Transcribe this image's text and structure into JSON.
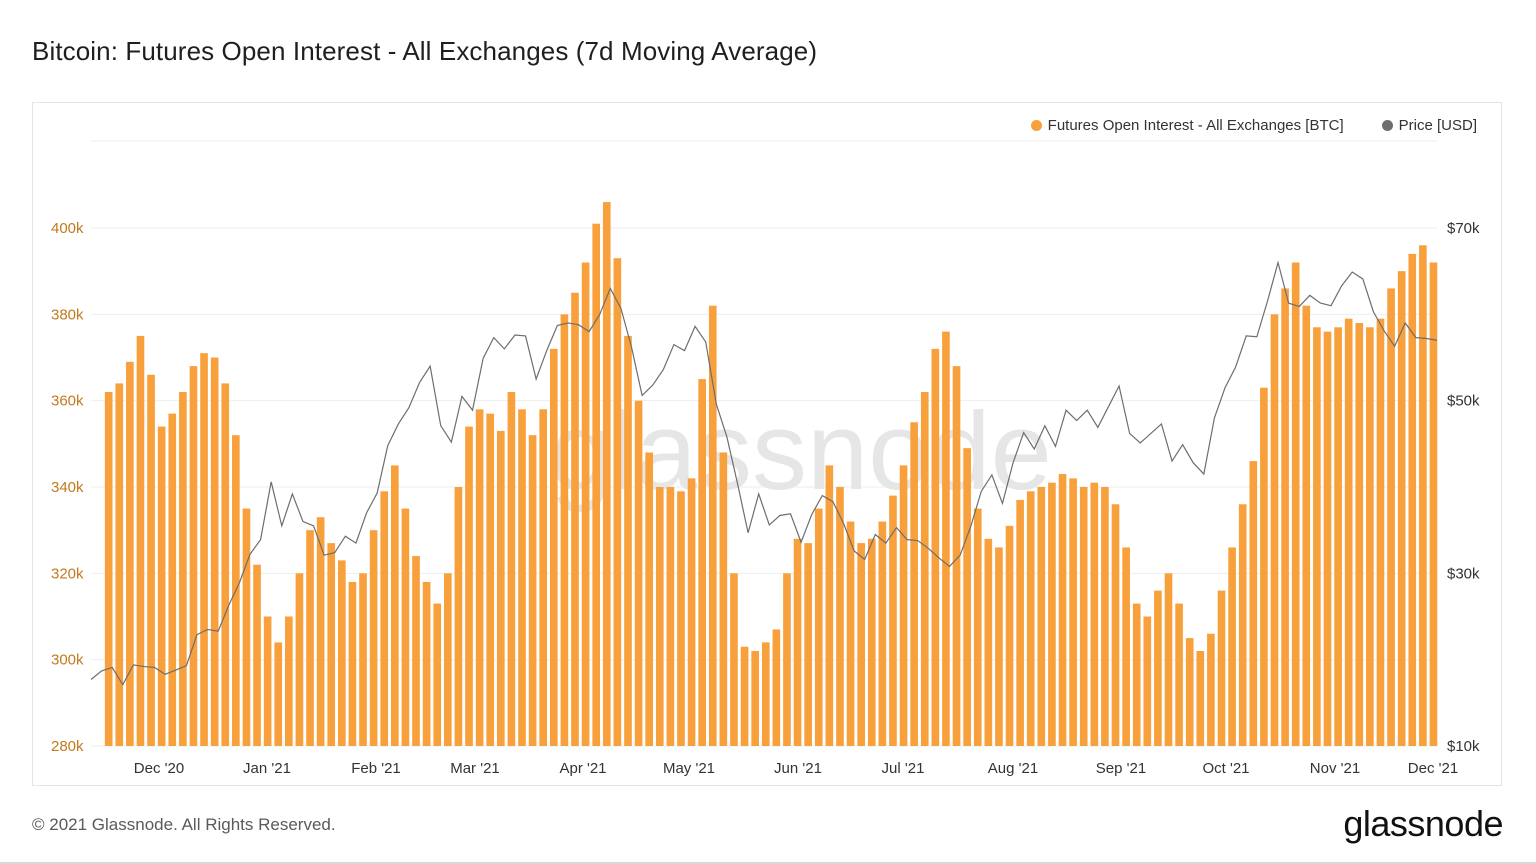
{
  "title": "Bitcoin: Futures Open Interest - All Exchanges (7d Moving Average)",
  "footer": {
    "copyright": "© 2021 Glassnode. All Rights Reserved.",
    "brand": "glassnode"
  },
  "watermark": "glassnode",
  "colors": {
    "oi": "#f7a03c",
    "price": "#6e6e6e",
    "oi_axis": "#c27a1e",
    "price_axis": "#333333",
    "grid": "#eeeeee"
  },
  "chart_data": {
    "type": "bar",
    "title": "Bitcoin: Futures Open Interest - All Exchanges (7d Moving Average)",
    "legend_position": "top-right",
    "grid": true,
    "x_range": [
      "2020-11-18",
      "2021-12-04"
    ],
    "x_ticks": [
      "Dec '20",
      "Jan '21",
      "Feb '21",
      "Mar '21",
      "Apr '21",
      "May '21",
      "Jun '21",
      "Jul '21",
      "Aug '21",
      "Sep '21",
      "Oct '21",
      "Nov '21",
      "Dec '21"
    ],
    "y_left": {
      "ticks": [
        "280k",
        "300k",
        "320k",
        "340k",
        "360k",
        "380k",
        "400k"
      ],
      "ylim": [
        280000,
        400000
      ]
    },
    "y_right": {
      "ticks": [
        "$10k",
        "$30k",
        "$50k",
        "$70k"
      ],
      "ylim": [
        10000,
        70000
      ]
    },
    "series": [
      {
        "name": "Futures Open Interest - All Exchanges [BTC]",
        "type": "bar",
        "axis": "left",
        "points": [
          [
            "2020-11-23",
            362000
          ],
          [
            "2020-11-26",
            364000
          ],
          [
            "2020-11-29",
            369000
          ],
          [
            "2020-12-02",
            375000
          ],
          [
            "2020-12-05",
            366000
          ],
          [
            "2020-12-08",
            354000
          ],
          [
            "2020-12-11",
            357000
          ],
          [
            "2020-12-14",
            362000
          ],
          [
            "2020-12-17",
            368000
          ],
          [
            "2020-12-20",
            371000
          ],
          [
            "2020-12-23",
            370000
          ],
          [
            "2020-12-26",
            364000
          ],
          [
            "2020-12-29",
            352000
          ],
          [
            "2021-01-01",
            335000
          ],
          [
            "2021-01-04",
            322000
          ],
          [
            "2021-01-07",
            310000
          ],
          [
            "2021-01-10",
            304000
          ],
          [
            "2021-01-13",
            310000
          ],
          [
            "2021-01-16",
            320000
          ],
          [
            "2021-01-19",
            330000
          ],
          [
            "2021-01-22",
            333000
          ],
          [
            "2021-01-25",
            327000
          ],
          [
            "2021-01-28",
            323000
          ],
          [
            "2021-01-31",
            318000
          ],
          [
            "2021-02-03",
            320000
          ],
          [
            "2021-02-06",
            330000
          ],
          [
            "2021-02-09",
            339000
          ],
          [
            "2021-02-12",
            345000
          ],
          [
            "2021-02-15",
            335000
          ],
          [
            "2021-02-18",
            324000
          ],
          [
            "2021-02-21",
            318000
          ],
          [
            "2021-02-24",
            313000
          ],
          [
            "2021-02-27",
            320000
          ],
          [
            "2021-03-02",
            340000
          ],
          [
            "2021-03-05",
            354000
          ],
          [
            "2021-03-08",
            358000
          ],
          [
            "2021-03-11",
            357000
          ],
          [
            "2021-03-14",
            353000
          ],
          [
            "2021-03-17",
            362000
          ],
          [
            "2021-03-20",
            358000
          ],
          [
            "2021-03-23",
            352000
          ],
          [
            "2021-03-26",
            358000
          ],
          [
            "2021-03-29",
            372000
          ],
          [
            "2021-04-01",
            380000
          ],
          [
            "2021-04-04",
            385000
          ],
          [
            "2021-04-07",
            392000
          ],
          [
            "2021-04-10",
            401000
          ],
          [
            "2021-04-13",
            406000
          ],
          [
            "2021-04-16",
            393000
          ],
          [
            "2021-04-19",
            375000
          ],
          [
            "2021-04-22",
            360000
          ],
          [
            "2021-04-25",
            348000
          ],
          [
            "2021-04-28",
            340000
          ],
          [
            "2021-05-01",
            340000
          ],
          [
            "2021-05-04",
            339000
          ],
          [
            "2021-05-07",
            342000
          ],
          [
            "2021-05-10",
            365000
          ],
          [
            "2021-05-13",
            382000
          ],
          [
            "2021-05-16",
            348000
          ],
          [
            "2021-05-19",
            320000
          ],
          [
            "2021-05-22",
            303000
          ],
          [
            "2021-05-25",
            302000
          ],
          [
            "2021-05-28",
            304000
          ],
          [
            "2021-05-31",
            307000
          ],
          [
            "2021-06-03",
            320000
          ],
          [
            "2021-06-06",
            328000
          ],
          [
            "2021-06-09",
            327000
          ],
          [
            "2021-06-12",
            335000
          ],
          [
            "2021-06-15",
            345000
          ],
          [
            "2021-06-18",
            340000
          ],
          [
            "2021-06-21",
            332000
          ],
          [
            "2021-06-24",
            327000
          ],
          [
            "2021-06-27",
            328000
          ],
          [
            "2021-06-30",
            332000
          ],
          [
            "2021-07-03",
            338000
          ],
          [
            "2021-07-06",
            345000
          ],
          [
            "2021-07-09",
            355000
          ],
          [
            "2021-07-12",
            362000
          ],
          [
            "2021-07-15",
            372000
          ],
          [
            "2021-07-18",
            376000
          ],
          [
            "2021-07-21",
            368000
          ],
          [
            "2021-07-24",
            349000
          ],
          [
            "2021-07-27",
            335000
          ],
          [
            "2021-07-30",
            328000
          ],
          [
            "2021-08-02",
            326000
          ],
          [
            "2021-08-05",
            331000
          ],
          [
            "2021-08-08",
            337000
          ],
          [
            "2021-08-11",
            339000
          ],
          [
            "2021-08-14",
            340000
          ],
          [
            "2021-08-17",
            341000
          ],
          [
            "2021-08-20",
            343000
          ],
          [
            "2021-08-23",
            342000
          ],
          [
            "2021-08-26",
            340000
          ],
          [
            "2021-08-29",
            341000
          ],
          [
            "2021-09-01",
            340000
          ],
          [
            "2021-09-04",
            336000
          ],
          [
            "2021-09-07",
            326000
          ],
          [
            "2021-09-10",
            313000
          ],
          [
            "2021-09-13",
            310000
          ],
          [
            "2021-09-16",
            316000
          ],
          [
            "2021-09-19",
            320000
          ],
          [
            "2021-09-22",
            313000
          ],
          [
            "2021-09-25",
            305000
          ],
          [
            "2021-09-28",
            302000
          ],
          [
            "2021-10-01",
            306000
          ],
          [
            "2021-10-04",
            316000
          ],
          [
            "2021-10-07",
            326000
          ],
          [
            "2021-10-10",
            336000
          ],
          [
            "2021-10-13",
            346000
          ],
          [
            "2021-10-16",
            363000
          ],
          [
            "2021-10-19",
            380000
          ],
          [
            "2021-10-22",
            386000
          ],
          [
            "2021-10-25",
            392000
          ],
          [
            "2021-10-28",
            382000
          ],
          [
            "2021-10-31",
            377000
          ],
          [
            "2021-11-03",
            376000
          ],
          [
            "2021-11-06",
            377000
          ],
          [
            "2021-11-09",
            379000
          ],
          [
            "2021-11-12",
            378000
          ],
          [
            "2021-11-15",
            377000
          ],
          [
            "2021-11-18",
            379000
          ],
          [
            "2021-11-21",
            386000
          ],
          [
            "2021-11-24",
            390000
          ],
          [
            "2021-11-27",
            394000
          ],
          [
            "2021-11-30",
            396000
          ],
          [
            "2021-12-03",
            392000
          ]
        ]
      },
      {
        "name": "Price [USD]",
        "type": "line",
        "axis": "right",
        "points": [
          [
            "2020-11-18",
            17700
          ],
          [
            "2020-11-21",
            18700
          ],
          [
            "2020-11-24",
            19100
          ],
          [
            "2020-11-27",
            17100
          ],
          [
            "2020-11-30",
            19400
          ],
          [
            "2020-12-03",
            19200
          ],
          [
            "2020-12-06",
            19100
          ],
          [
            "2020-12-09",
            18300
          ],
          [
            "2020-12-12",
            18800
          ],
          [
            "2020-12-15",
            19300
          ],
          [
            "2020-12-18",
            22900
          ],
          [
            "2020-12-21",
            23500
          ],
          [
            "2020-12-24",
            23300
          ],
          [
            "2020-12-27",
            26300
          ],
          [
            "2020-12-30",
            28900
          ],
          [
            "2021-01-02",
            32200
          ],
          [
            "2021-01-05",
            33900
          ],
          [
            "2021-01-08",
            40600
          ],
          [
            "2021-01-11",
            35500
          ],
          [
            "2021-01-14",
            39200
          ],
          [
            "2021-01-17",
            36000
          ],
          [
            "2021-01-20",
            35500
          ],
          [
            "2021-01-23",
            32100
          ],
          [
            "2021-01-26",
            32400
          ],
          [
            "2021-01-29",
            34300
          ],
          [
            "2021-02-01",
            33500
          ],
          [
            "2021-02-04",
            37000
          ],
          [
            "2021-02-07",
            39300
          ],
          [
            "2021-02-10",
            44800
          ],
          [
            "2021-02-13",
            47300
          ],
          [
            "2021-02-16",
            49200
          ],
          [
            "2021-02-19",
            52100
          ],
          [
            "2021-02-22",
            54000
          ],
          [
            "2021-02-25",
            47100
          ],
          [
            "2021-02-28",
            45200
          ],
          [
            "2021-03-03",
            50500
          ],
          [
            "2021-03-06",
            48900
          ],
          [
            "2021-03-09",
            54900
          ],
          [
            "2021-03-12",
            57300
          ],
          [
            "2021-03-15",
            56000
          ],
          [
            "2021-03-18",
            57600
          ],
          [
            "2021-03-21",
            57500
          ],
          [
            "2021-03-24",
            52500
          ],
          [
            "2021-03-27",
            55800
          ],
          [
            "2021-03-30",
            58700
          ],
          [
            "2021-04-02",
            59000
          ],
          [
            "2021-04-05",
            58800
          ],
          [
            "2021-04-08",
            58000
          ],
          [
            "2021-04-11",
            60000
          ],
          [
            "2021-04-14",
            63000
          ],
          [
            "2021-04-17",
            60700
          ],
          [
            "2021-04-20",
            56200
          ],
          [
            "2021-04-23",
            50600
          ],
          [
            "2021-04-26",
            51800
          ],
          [
            "2021-04-29",
            53600
          ],
          [
            "2021-05-02",
            56500
          ],
          [
            "2021-05-05",
            55800
          ],
          [
            "2021-05-08",
            58600
          ],
          [
            "2021-05-11",
            56800
          ],
          [
            "2021-05-14",
            49600
          ],
          [
            "2021-05-17",
            45800
          ],
          [
            "2021-05-20",
            40400
          ],
          [
            "2021-05-23",
            34700
          ],
          [
            "2021-05-26",
            39200
          ],
          [
            "2021-05-29",
            35600
          ],
          [
            "2021-06-01",
            36700
          ],
          [
            "2021-06-04",
            36900
          ],
          [
            "2021-06-07",
            33600
          ],
          [
            "2021-06-10",
            36800
          ],
          [
            "2021-06-13",
            39000
          ],
          [
            "2021-06-16",
            38300
          ],
          [
            "2021-06-19",
            35800
          ],
          [
            "2021-06-22",
            32600
          ],
          [
            "2021-06-25",
            31600
          ],
          [
            "2021-06-28",
            34500
          ],
          [
            "2021-07-01",
            33500
          ],
          [
            "2021-07-04",
            35300
          ],
          [
            "2021-07-07",
            33900
          ],
          [
            "2021-07-10",
            33800
          ],
          [
            "2021-07-13",
            32900
          ],
          [
            "2021-07-16",
            31800
          ],
          [
            "2021-07-19",
            30800
          ],
          [
            "2021-07-22",
            32100
          ],
          [
            "2021-07-25",
            35400
          ],
          [
            "2021-07-28",
            39500
          ],
          [
            "2021-07-31",
            41400
          ],
          [
            "2021-08-03",
            38100
          ],
          [
            "2021-08-06",
            42800
          ],
          [
            "2021-08-09",
            46300
          ],
          [
            "2021-08-12",
            44400
          ],
          [
            "2021-08-15",
            47100
          ],
          [
            "2021-08-18",
            44700
          ],
          [
            "2021-08-21",
            48900
          ],
          [
            "2021-08-24",
            47700
          ],
          [
            "2021-08-27",
            48900
          ],
          [
            "2021-08-30",
            46900
          ],
          [
            "2021-09-02",
            49300
          ],
          [
            "2021-09-05",
            51700
          ],
          [
            "2021-09-08",
            46200
          ],
          [
            "2021-09-11",
            45100
          ],
          [
            "2021-09-14",
            46200
          ],
          [
            "2021-09-17",
            47300
          ],
          [
            "2021-09-20",
            43000
          ],
          [
            "2021-09-23",
            44900
          ],
          [
            "2021-09-26",
            42800
          ],
          [
            "2021-09-29",
            41500
          ],
          [
            "2021-10-02",
            48000
          ],
          [
            "2021-10-05",
            51500
          ],
          [
            "2021-10-08",
            53900
          ],
          [
            "2021-10-11",
            57500
          ],
          [
            "2021-10-14",
            57400
          ],
          [
            "2021-10-17",
            61500
          ],
          [
            "2021-10-20",
            66000
          ],
          [
            "2021-10-23",
            61300
          ],
          [
            "2021-10-26",
            60900
          ],
          [
            "2021-10-29",
            62200
          ],
          [
            "2021-11-01",
            61300
          ],
          [
            "2021-11-04",
            61000
          ],
          [
            "2021-11-07",
            63300
          ],
          [
            "2021-11-10",
            64900
          ],
          [
            "2021-11-13",
            64100
          ],
          [
            "2021-11-16",
            60300
          ],
          [
            "2021-11-19",
            58100
          ],
          [
            "2021-11-22",
            56300
          ],
          [
            "2021-11-25",
            59000
          ],
          [
            "2021-11-28",
            57300
          ],
          [
            "2021-12-01",
            57200
          ],
          [
            "2021-12-04",
            57000
          ]
        ]
      }
    ]
  }
}
